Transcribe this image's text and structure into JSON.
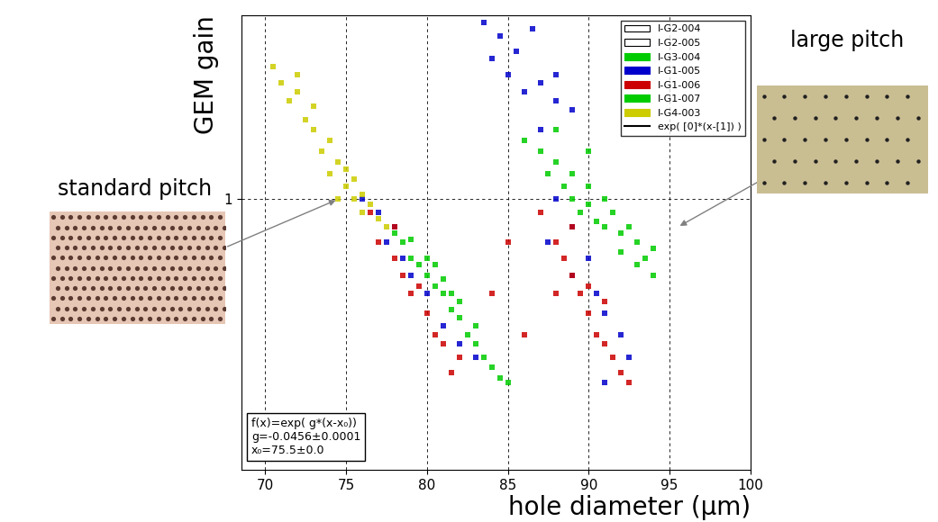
{
  "chart_data": {
    "type": "scatter",
    "y_label": "GEM gain",
    "x_label": "hole diameter (µm)",
    "annotations": [
      "standard pitch",
      "large pitch"
    ],
    "fit_text": [
      "f(x)=exp( g*(x-x₀))",
      "g=-0.0456±0.0001",
      "x₀=75.5±0.0"
    ],
    "log": "y",
    "grid": true,
    "legend": "upper right",
    "xlim": [
      68.5,
      100
    ],
    "xticks": [
      70,
      75,
      80,
      85,
      90,
      95,
      100
    ],
    "ylim": [
      0.36,
      2.0
    ],
    "yticks": [
      1
    ],
    "series": [
      {
        "name": "I-G2-004",
        "color": "#000000",
        "x": [],
        "values": []
      },
      {
        "name": "I-G2-005",
        "color": "#000000",
        "x": [],
        "values": []
      },
      {
        "name": "I-G3-004",
        "color": "#00cc00",
        "x": [
          78,
          78.5,
          79,
          79,
          79.5,
          80,
          80,
          80.5,
          81,
          81,
          81.5,
          82,
          82,
          82.5,
          83,
          83,
          83.5,
          84,
          84.5,
          85,
          80.5,
          81.5
        ],
        "values": [
          0.88,
          0.85,
          0.8,
          0.86,
          0.78,
          0.75,
          0.8,
          0.72,
          0.7,
          0.74,
          0.66,
          0.64,
          0.68,
          0.6,
          0.58,
          0.62,
          0.55,
          0.53,
          0.51,
          0.5,
          0.78,
          0.7
        ]
      },
      {
        "name": "I-G1-005",
        "color": "#0000cc",
        "x": [
          83.5,
          84,
          84.5,
          85,
          85.5,
          86,
          86.5,
          87,
          88,
          89,
          88,
          87,
          76,
          77,
          77.5,
          78,
          78.5,
          79,
          80,
          81,
          82,
          83,
          88,
          89,
          90,
          90.5,
          91,
          92,
          92.5,
          87.5,
          89,
          91
        ],
        "values": [
          1.95,
          1.7,
          1.85,
          1.6,
          1.75,
          1.5,
          1.9,
          1.55,
          1.45,
          1.4,
          1.6,
          1.3,
          1.0,
          0.95,
          0.85,
          0.9,
          0.8,
          0.75,
          0.7,
          0.62,
          0.58,
          0.55,
          1.0,
          0.9,
          0.8,
          0.7,
          0.65,
          0.6,
          0.55,
          0.85,
          0.75,
          0.5
        ]
      },
      {
        "name": "I-G1-006",
        "color": "#cc0000",
        "x": [
          76.5,
          77,
          78,
          78.5,
          79,
          80,
          80.5,
          81,
          82,
          79.5,
          78,
          81.5,
          87,
          88,
          88.5,
          89,
          89.5,
          90,
          90,
          90.5,
          91,
          91.5,
          92,
          92.5,
          89,
          91,
          88,
          84,
          85,
          86
        ],
        "values": [
          0.95,
          0.85,
          0.8,
          0.75,
          0.7,
          0.65,
          0.6,
          0.58,
          0.55,
          0.72,
          0.9,
          0.52,
          0.95,
          0.85,
          0.8,
          0.75,
          0.7,
          0.65,
          0.72,
          0.6,
          0.58,
          0.55,
          0.52,
          0.5,
          0.9,
          0.68,
          0.7,
          0.7,
          0.85,
          0.6
        ]
      },
      {
        "name": "I-G1-007",
        "color": "#00cc00",
        "x": [
          86,
          87,
          87.5,
          88,
          88.5,
          89,
          89,
          89.5,
          90,
          90,
          90.5,
          91,
          91,
          91.5,
          92,
          92,
          92.5,
          93,
          93,
          93.5,
          94,
          94,
          88,
          90
        ],
        "values": [
          1.25,
          1.2,
          1.1,
          1.15,
          1.05,
          1.1,
          1.0,
          0.95,
          1.05,
          0.98,
          0.92,
          1.0,
          0.9,
          0.95,
          0.88,
          0.82,
          0.9,
          0.85,
          0.78,
          0.8,
          0.75,
          0.83,
          1.3,
          1.2
        ]
      },
      {
        "name": "I-G4-003",
        "color": "#cccc00",
        "x": [
          71,
          71.5,
          72,
          72.5,
          73,
          73,
          73.5,
          74,
          74,
          74.5,
          75,
          75,
          75.5,
          76,
          76,
          76.5,
          77,
          72,
          70.5,
          74.5,
          75.5,
          77.5
        ],
        "values": [
          1.55,
          1.45,
          1.5,
          1.35,
          1.3,
          1.42,
          1.2,
          1.25,
          1.1,
          1.15,
          1.05,
          1.12,
          1.0,
          1.02,
          0.95,
          0.98,
          0.93,
          1.6,
          1.65,
          1.0,
          1.08,
          0.9
        ]
      },
      {
        "name": "exp( [0]*(x-[1]) )",
        "color": "#000000",
        "type": "line",
        "x": [],
        "values": []
      }
    ]
  }
}
